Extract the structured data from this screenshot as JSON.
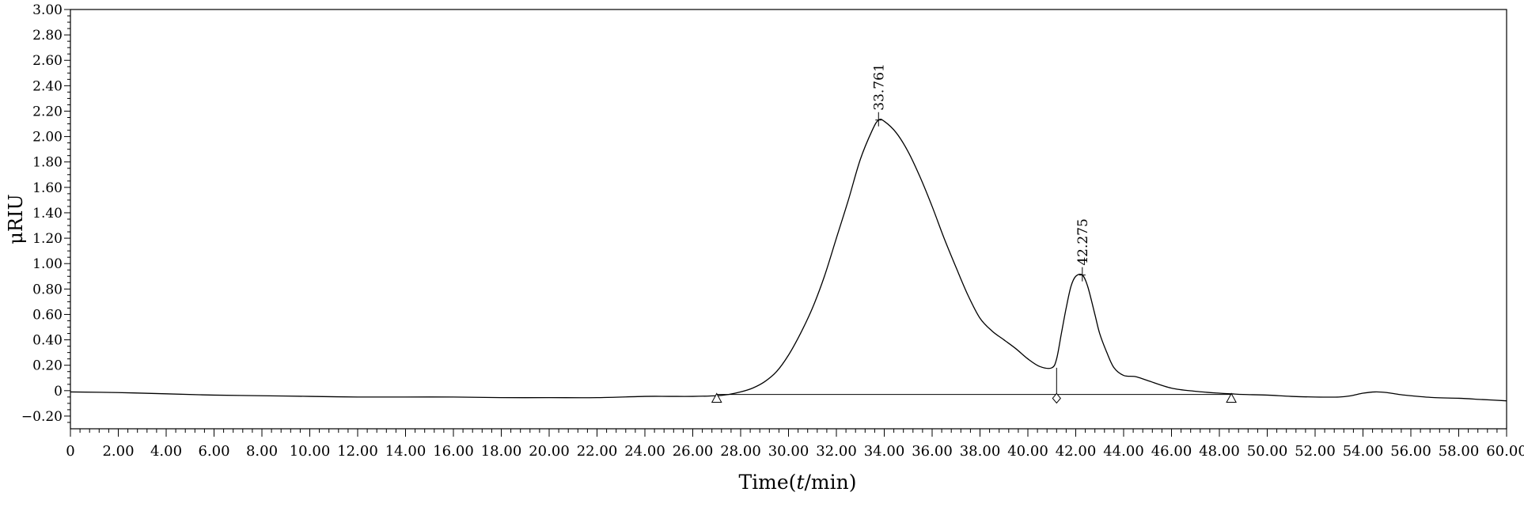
{
  "chart_data": {
    "type": "line",
    "title": "",
    "xlabel": "Time",
    "xlabel_unit_italic": "t",
    "xlabel_unit_rest": "/min",
    "ylabel": "μRIU",
    "xlim": [
      0,
      60
    ],
    "ylim": [
      -0.3,
      3.0
    ],
    "x_ticks": [
      "0",
      "2.00",
      "4.00",
      "6.00",
      "8.00",
      "10.00",
      "12.00",
      "14.00",
      "16.00",
      "18.00",
      "20.00",
      "22.00",
      "24.00",
      "26.00",
      "28.00",
      "30.00",
      "32.00",
      "34.00",
      "36.00",
      "38.00",
      "40.00",
      "42.00",
      "44.00",
      "46.00",
      "48.00",
      "50.00",
      "52.00",
      "54.00",
      "56.00",
      "58.00",
      "60.00"
    ],
    "y_ticks": [
      "3.00",
      "2.80",
      "2.60",
      "2.40",
      "2.20",
      "2.00",
      "1.80",
      "1.60",
      "1.40",
      "1.20",
      "1.00",
      "0.80",
      "0.60",
      "0.40",
      "0.20",
      "0",
      "−0.20"
    ],
    "grid": false,
    "line_color": "#000000",
    "series": [
      {
        "x": [
          0,
          2,
          4,
          6,
          8,
          10,
          12,
          14,
          16,
          18,
          20,
          22,
          24,
          25,
          26,
          27,
          27.5,
          28,
          28.5,
          29,
          29.5,
          30,
          30.5,
          31,
          31.5,
          32,
          32.5,
          33,
          33.5,
          33.761,
          34,
          34.5,
          35,
          35.5,
          36,
          36.5,
          37,
          37.5,
          38,
          38.5,
          39,
          39.5,
          40,
          40.5,
          41,
          41.2,
          41.4,
          41.6,
          41.8,
          42,
          42.275,
          42.5,
          42.8,
          43,
          43.3,
          43.6,
          44,
          44.5,
          45,
          46,
          47,
          48,
          48.5,
          49,
          50,
          51,
          52,
          53,
          53.5,
          54,
          54.5,
          55,
          55.5,
          56,
          57,
          58,
          59,
          60
        ],
        "y": [
          -0.01,
          -0.015,
          -0.025,
          -0.035,
          -0.04,
          -0.045,
          -0.05,
          -0.05,
          -0.05,
          -0.055,
          -0.055,
          -0.055,
          -0.045,
          -0.045,
          -0.045,
          -0.04,
          -0.03,
          -0.01,
          0.02,
          0.07,
          0.15,
          0.28,
          0.45,
          0.65,
          0.9,
          1.2,
          1.5,
          1.82,
          2.05,
          2.13,
          2.12,
          2.03,
          1.88,
          1.68,
          1.45,
          1.2,
          0.97,
          0.75,
          0.57,
          0.47,
          0.4,
          0.33,
          0.25,
          0.19,
          0.18,
          0.25,
          0.45,
          0.65,
          0.82,
          0.9,
          0.91,
          0.82,
          0.6,
          0.45,
          0.3,
          0.18,
          0.12,
          0.11,
          0.08,
          0.02,
          -0.005,
          -0.02,
          -0.025,
          -0.03,
          -0.035,
          -0.045,
          -0.05,
          -0.05,
          -0.04,
          -0.02,
          -0.01,
          -0.015,
          -0.03,
          -0.04,
          -0.055,
          -0.06,
          -0.07,
          -0.08
        ]
      }
    ],
    "baseline": {
      "x": [
        27,
        48.5
      ],
      "y": [
        -0.03,
        -0.03
      ]
    },
    "peak_labels": [
      {
        "x": 33.761,
        "y": 2.13,
        "label": "33.761"
      },
      {
        "x": 42.275,
        "y": 0.91,
        "label": "42.275"
      }
    ],
    "markers": [
      {
        "x": 27.0,
        "y": -0.06,
        "shape": "triangle"
      },
      {
        "x": 41.2,
        "y": -0.06,
        "shape": "diamond"
      },
      {
        "x": 48.5,
        "y": -0.06,
        "shape": "triangle"
      }
    ],
    "valley_drop": {
      "x": 41.2,
      "y_top": 0.18,
      "y_bottom": -0.03
    }
  }
}
